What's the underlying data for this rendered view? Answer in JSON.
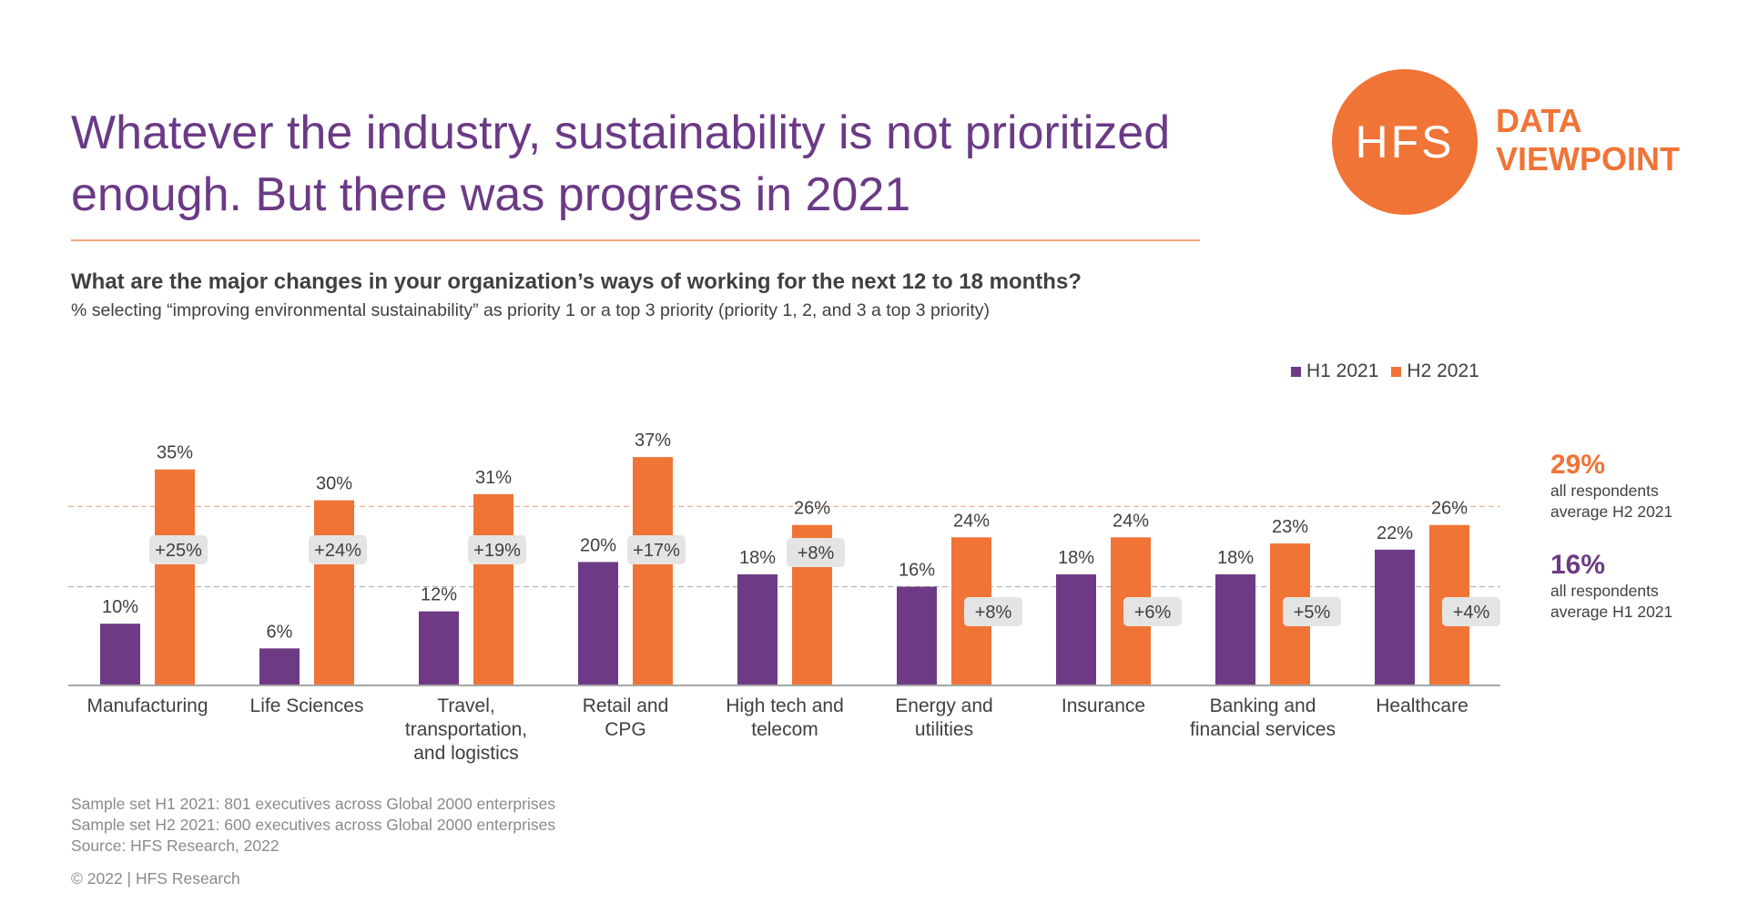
{
  "header": {
    "title_line1": "Whatever the industry, sustainability is not prioritized",
    "title_line2": "enough. But there was progress in 2021",
    "question": "What are the major changes in your organization’s ways of working for the next 12 to 18 months?",
    "subtitle": "% selecting “improving environmental sustainability” as priority 1 or a top 3 priority (priority 1, 2, and 3 a top 3 priority)"
  },
  "logo": {
    "mark": "HFS",
    "line1": "DATA",
    "line2": "VIEWPOINT"
  },
  "legend": {
    "h1": "H1 2021",
    "h2": "H2 2021"
  },
  "averages": {
    "h2_value": "29%",
    "h2_line1": "all respondents",
    "h2_line2": "average H2 2021",
    "h1_value": "16%",
    "h1_line1": "all respondents",
    "h1_line2": "average H1 2021"
  },
  "footer": {
    "sample_h1": "Sample set H1 2021: 801 executives across Global 2000 enterprises",
    "sample_h2": "Sample set H2 2021: 600 executives across Global 2000 enterprises",
    "source": "Source: HFS Research, 2022",
    "copyright": "© 2022 | HFS Research"
  },
  "colors": {
    "h1": "#6e3a85",
    "h2": "#f07436",
    "title": "#6b3a86",
    "badge_bg": "#e4e4e4",
    "axis": "#a6a6a6"
  },
  "chart_data": {
    "type": "bar",
    "categories": [
      [
        "Manufacturing"
      ],
      [
        "Life Sciences"
      ],
      [
        "Travel,",
        "transportation,",
        "and logistics"
      ],
      [
        "Retail and",
        "CPG"
      ],
      [
        "High tech and",
        "telecom"
      ],
      [
        "Energy and",
        "utilities"
      ],
      [
        "Insurance"
      ],
      [
        "Banking and",
        "financial services"
      ],
      [
        "Healthcare"
      ]
    ],
    "series": [
      {
        "name": "H1 2021",
        "values": [
          10,
          6,
          12,
          20,
          18,
          16,
          18,
          18,
          22
        ],
        "labels": [
          "10%",
          "6%",
          "12%",
          "20%",
          "18%",
          "16%",
          "18%",
          "18%",
          "22%"
        ]
      },
      {
        "name": "H2 2021",
        "values": [
          35,
          30,
          31,
          37,
          26,
          24,
          24,
          23,
          26
        ],
        "labels": [
          "35%",
          "30%",
          "31%",
          "37%",
          "26%",
          "24%",
          "24%",
          "23%",
          "26%"
        ]
      }
    ],
    "change_labels": [
      "+25%",
      "+24%",
      "+19%",
      "+17%",
      "+8%",
      "+8%",
      "+6%",
      "+5%",
      "+4%"
    ],
    "reference_lines": [
      {
        "name": "H2 2021 average",
        "value": 29
      },
      {
        "name": "H1 2021 average",
        "value": 16
      }
    ],
    "ylim": [
      0,
      40
    ],
    "legend_position": "top-right",
    "grid": false
  }
}
